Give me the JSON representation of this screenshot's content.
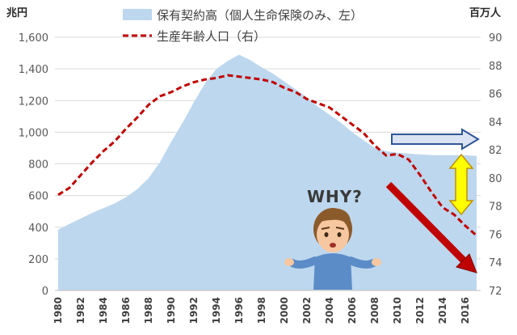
{
  "chart_data": {
    "type": "area",
    "x": [
      1980,
      1981,
      1982,
      1983,
      1984,
      1985,
      1986,
      1987,
      1988,
      1989,
      1990,
      1991,
      1992,
      1993,
      1994,
      1995,
      1996,
      1997,
      1998,
      1999,
      2000,
      2001,
      2002,
      2003,
      2004,
      2005,
      2006,
      2007,
      2008,
      2009,
      2010,
      2011,
      2012,
      2013,
      2014,
      2015,
      2016,
      2017
    ],
    "x_tick_labels": [
      "1980",
      "1982",
      "1984",
      "1986",
      "1988",
      "1990",
      "1992",
      "1994",
      "1996",
      "1998",
      "2000",
      "2002",
      "2004",
      "2006",
      "2008",
      "2010",
      "2012",
      "2014",
      "2016"
    ],
    "left_unit": "兆円",
    "right_unit": "百万人",
    "left_ticks": [
      "0",
      "200",
      "400",
      "600",
      "800",
      "1,000",
      "1,200",
      "1,400",
      "1,600"
    ],
    "right_ticks": [
      "72",
      "74",
      "76",
      "78",
      "80",
      "82",
      "84",
      "86",
      "88",
      "90"
    ],
    "ylim_left": [
      0,
      1600
    ],
    "ylim_right": [
      72,
      90
    ],
    "series": [
      {
        "name": "保有契約高（個人生命保険のみ、左）",
        "axis": "left",
        "style": "area",
        "color": "#bdd7ee",
        "values": [
          385,
          420,
          455,
          490,
          520,
          550,
          590,
          640,
          710,
          810,
          940,
          1060,
          1190,
          1310,
          1400,
          1450,
          1490,
          1455,
          1410,
          1370,
          1320,
          1270,
          1220,
          1160,
          1110,
          1060,
          1000,
          950,
          900,
          880,
          870,
          865,
          860,
          855,
          855,
          855,
          855,
          850
        ]
      },
      {
        "name": "生産年齢人口（右）",
        "axis": "right",
        "style": "dashed-line",
        "color": "#c00000",
        "values": [
          78.8,
          79.3,
          80.2,
          81.1,
          81.9,
          82.6,
          83.5,
          84.3,
          85.2,
          85.8,
          86.1,
          86.5,
          86.8,
          87.0,
          87.1,
          87.3,
          87.2,
          87.1,
          87.0,
          86.8,
          86.4,
          86.1,
          85.6,
          85.3,
          85.0,
          84.4,
          83.8,
          83.2,
          82.3,
          81.6,
          81.7,
          81.3,
          80.2,
          79.0,
          77.9,
          77.4,
          76.6,
          75.9
        ]
      }
    ],
    "annotations": {
      "why_text": "WHY?"
    },
    "grid": true,
    "legend_position": "top"
  }
}
